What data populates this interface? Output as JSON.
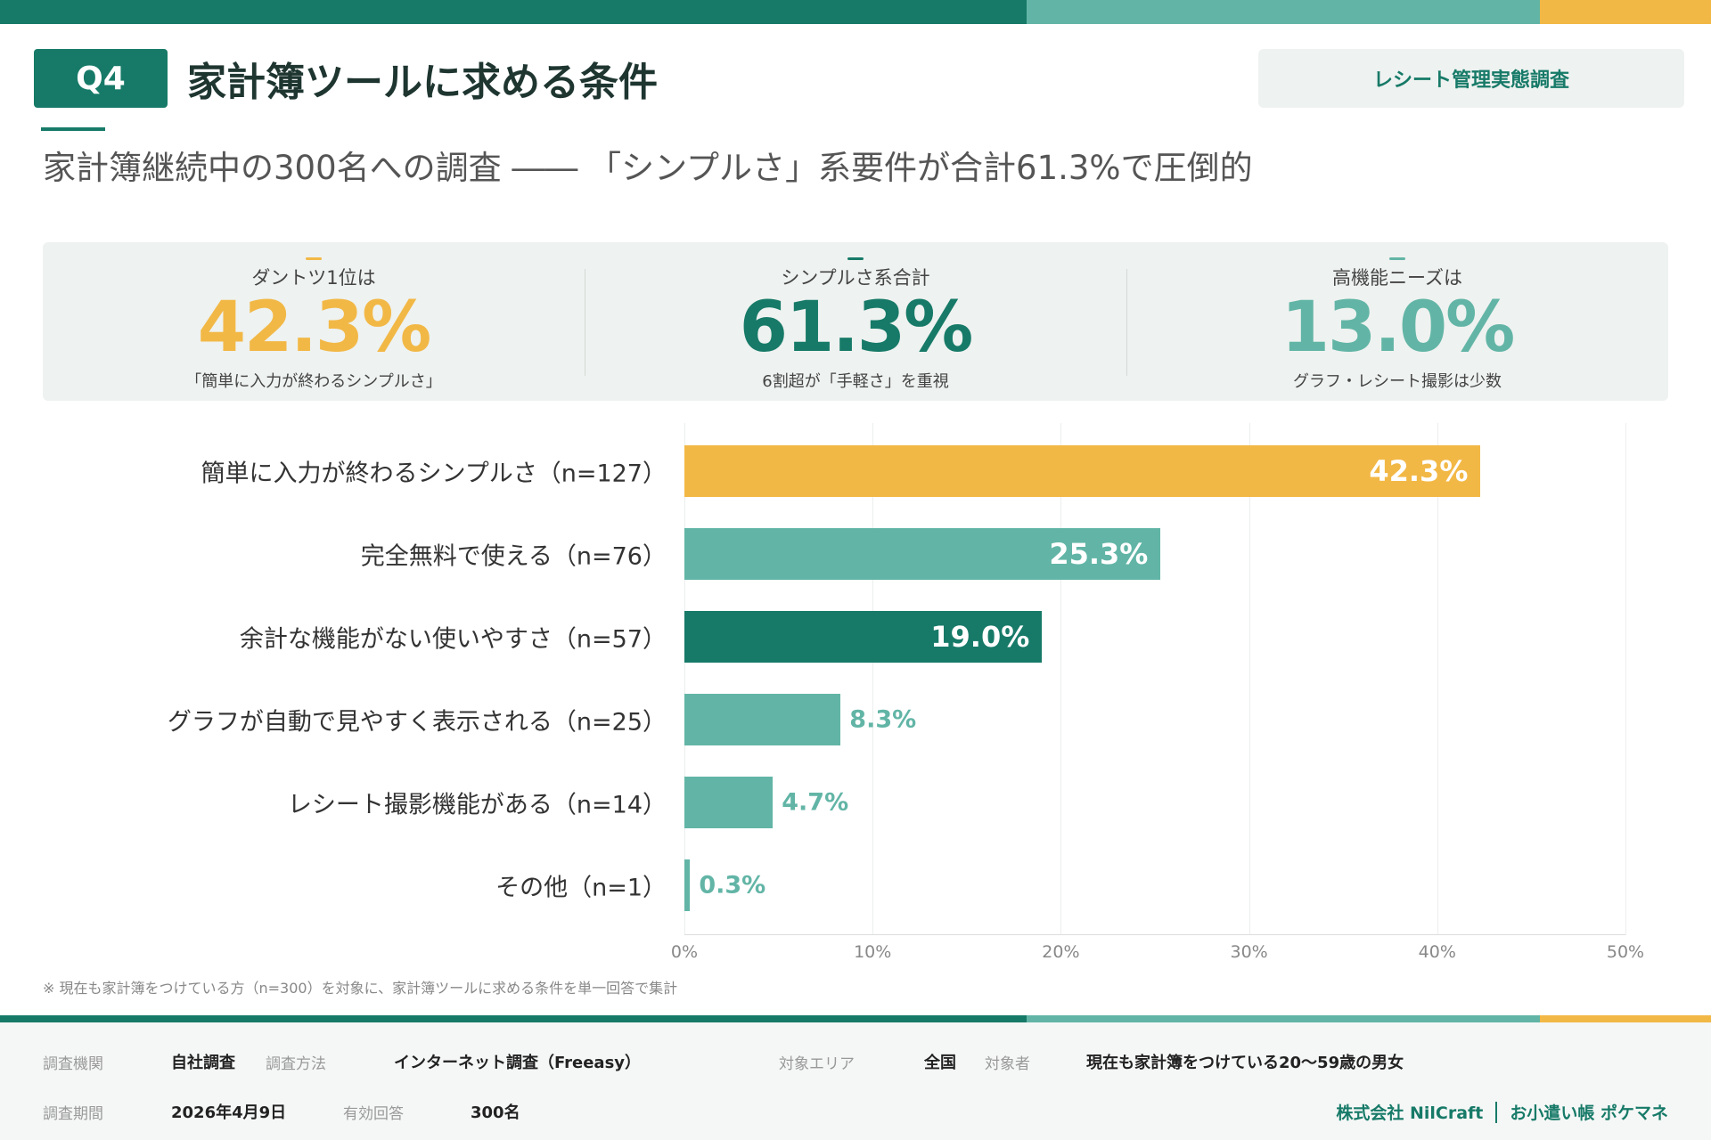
{
  "colors": {
    "dark": "#177a68",
    "teal": "#62b5a6",
    "yellow": "#f2b846"
  },
  "header": {
    "badge": "Q4",
    "title": "家計簿ツールに求める条件",
    "tag": "レシート管理実態調査",
    "subtitle": "家計簿継続中の300名への調査 ―― 「シンプルさ」系要件が合計61.3%で圧倒的"
  },
  "kpis": [
    {
      "label": "ダントツ1位は",
      "value": "42.3%",
      "sub": "「簡単に入力が終わるシンプルさ」",
      "color": "#f2b846"
    },
    {
      "label": "シンプルさ系合計",
      "value": "61.3%",
      "sub": "6割超が「手軽さ」を重視",
      "color": "#177a68"
    },
    {
      "label": "高機能ニーズは",
      "value": "13.0%",
      "sub": "グラフ・レシート撮影は少数",
      "color": "#62b5a6"
    }
  ],
  "chart_data": {
    "type": "bar",
    "orientation": "horizontal",
    "categories": [
      "簡単に入力が終わるシンプルさ（n=127）",
      "完全無料で使える（n=76）",
      "余計な機能がない使いやすさ（n=57）",
      "グラフが自動で見やすく表示される（n=25）",
      "レシート撮影機能がある（n=14）",
      "その他（n=1）"
    ],
    "values": [
      42.3,
      25.3,
      19.0,
      8.3,
      4.7,
      0.3
    ],
    "labels": [
      "42.3%",
      "25.3%",
      "19.0%",
      "8.3%",
      "4.7%",
      "0.3%"
    ],
    "bar_colors": [
      "#f2b846",
      "#62b5a6",
      "#177a68",
      "#62b5a6",
      "#62b5a6",
      "#62b5a6"
    ],
    "xlim": [
      0,
      50
    ],
    "xticks": [
      "0%",
      "10%",
      "20%",
      "30%",
      "40%",
      "50%"
    ],
    "grid": true
  },
  "note": "※ 現在も家計簿をつけている方（n=300）を対象に、家計簿ツールに求める条件を単一回答で集計",
  "footer": {
    "org_label": "調査機関",
    "org": "自社調査",
    "method_label": "調査方法",
    "method": "インターネット調査（Freeasy）",
    "area_label": "対象エリア",
    "area": "全国",
    "target_label": "対象者",
    "target": "現在も家計簿をつけている20〜59歳の男女",
    "period_label": "調査期間",
    "period": "2026年4月9日",
    "valid_label": "有効回答",
    "valid": "300名",
    "company": "株式会社 NilCraft",
    "product": "お小遣い帳 ポケマネ"
  }
}
